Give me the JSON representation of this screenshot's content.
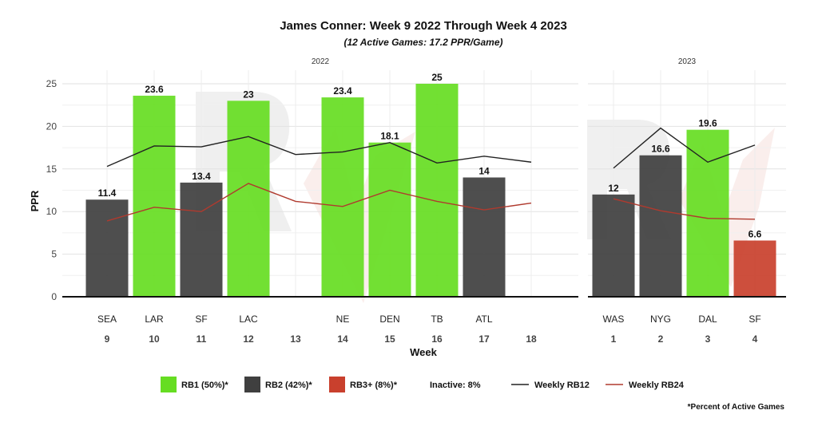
{
  "chart_data": {
    "type": "bar",
    "title": "James Conner: Week 9 2022 Through Week 4 2023",
    "subtitle": "(12 Active Games: 17.2 PPR/Game)",
    "xlabel": "Week",
    "ylabel": "PPR",
    "ylim": [
      0,
      25
    ],
    "yticks": [
      0,
      5,
      10,
      15,
      20,
      25
    ],
    "grid": true,
    "colors": {
      "RB1": "#66dd22",
      "RB2": "#3f3f3f",
      "RB3": "#c9402d",
      "rb12_line": "#222222",
      "rb24_line": "#b03a2e"
    },
    "panels": [
      {
        "label": "2022",
        "weeks": [
          "9",
          "10",
          "11",
          "12",
          "13",
          "14",
          "15",
          "16",
          "17",
          "18"
        ],
        "opponents": [
          "SEA",
          "LAR",
          "SF",
          "LAC",
          "",
          "NE",
          "DEN",
          "TB",
          "ATL",
          ""
        ],
        "values": [
          11.4,
          23.6,
          13.4,
          23,
          null,
          23.4,
          18.1,
          25,
          14,
          null
        ],
        "tiers": [
          "RB2",
          "RB1",
          "RB2",
          "RB1",
          null,
          "RB1",
          "RB1",
          "RB1",
          "RB2",
          null
        ],
        "rb12": [
          15.3,
          17.7,
          17.6,
          18.8,
          16.7,
          17.0,
          18.1,
          15.7,
          16.5,
          15.8
        ],
        "rb24": [
          8.9,
          10.5,
          10.0,
          13.3,
          11.2,
          10.6,
          12.5,
          11.2,
          10.2,
          11.0
        ]
      },
      {
        "label": "2023",
        "weeks": [
          "1",
          "2",
          "3",
          "4"
        ],
        "opponents": [
          "WAS",
          "NYG",
          "DAL",
          "SF"
        ],
        "values": [
          12,
          16.6,
          19.6,
          6.6
        ],
        "tiers": [
          "RB2",
          "RB2",
          "RB1",
          "RB3"
        ],
        "rb12": [
          15.1,
          19.8,
          15.8,
          17.8
        ],
        "rb24": [
          11.5,
          10.1,
          9.2,
          9.1
        ]
      }
    ],
    "legend": {
      "items": [
        {
          "label": "RB1 (50%)*",
          "kind": "box",
          "color": "#66dd22"
        },
        {
          "label": "RB2 (42%)*",
          "kind": "box",
          "color": "#3f3f3f"
        },
        {
          "label": "RB3+ (8%)*",
          "kind": "box",
          "color": "#c9402d"
        },
        {
          "label": "Inactive: 8%",
          "kind": "text"
        },
        {
          "label": "Weekly RB12",
          "kind": "line",
          "color": "#222222"
        },
        {
          "label": "Weekly RB24",
          "kind": "line",
          "color": "#b03a2e"
        }
      ],
      "position": "bottom"
    },
    "footnote": "*Percent of Active Games"
  }
}
